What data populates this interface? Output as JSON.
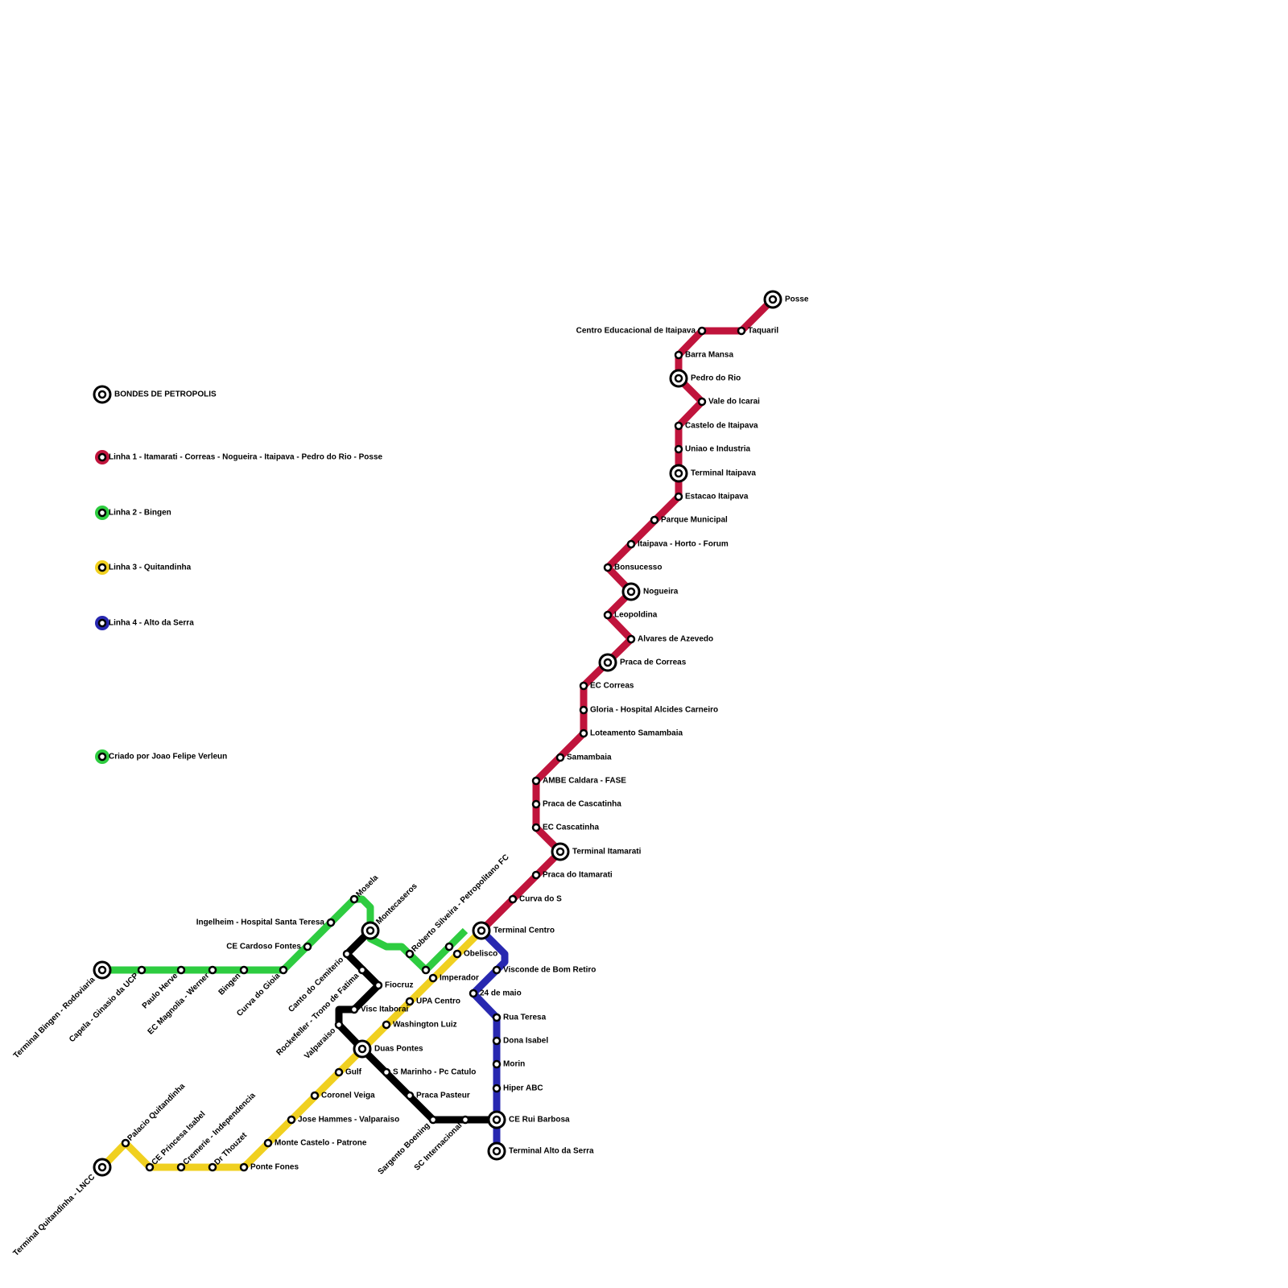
{
  "legend": {
    "title": "BONDES DE PETROPOLIS",
    "lines": [
      {
        "name": "Linha 1 - Itamarati - Correas - Nogueira - Itaipava - Pedro do Rio - Posse",
        "color": "#c0143c"
      },
      {
        "name": "Linha 2 - Bingen",
        "color": "#2ecc40"
      },
      {
        "name": "Linha 3 - Quitandinha",
        "color": "#f0d020"
      },
      {
        "name": "Linha 4 - Alto da Serra",
        "color": "#2828b0"
      }
    ],
    "credit": "Criado por Joao Felipe Verleun"
  },
  "stations": [
    "Terminal Centro",
    "Curva do S",
    "Praca do Itamarati",
    "Terminal Itamarati",
    "EC Cascatinha",
    "Praca de Cascatinha",
    "AMBE Caldara - FASE",
    "Samambaia",
    "Loteamento Samambaia",
    "Gloria - Hospital Alcides Carneiro",
    "EC Correas",
    "Praca de Correas",
    "Alvares de Azevedo",
    "Leopoldina",
    "Nogueira",
    "Bonsucesso",
    "Itaipava - Horto - Forum",
    "Parque Municipal",
    "Estacao Itaipava",
    "Terminal Itaipava",
    "Uniao e Industria",
    "Castelo de Itaipava",
    "Vale do Icarai",
    "Pedro do Rio",
    "Barra Mansa",
    "Centro Educacional de Itaipava",
    "Taquaril",
    "Posse",
    "Terminal Bingen - Rodoviaria",
    "Capela - Ginasio da UCP",
    "Paulo Herve",
    "EC Magnolia - Werner",
    "Bingen",
    "Curva do Gioia",
    "CE Cardoso Fontes",
    "Ingelheim - Hospital Santa Teresa",
    "Mosela",
    "Montecaseros",
    "Roberto Silveira - Petropolitano FC",
    "Terminal Quitandinha - LNCC",
    "Palacio Quitandinha",
    "CE Princesa Isabel",
    "Cremerie - Independencia",
    "Dr Thouzet",
    "Ponte Fones",
    "Monte Castelo - Patrone",
    "Jose Hammes - Valparaiso",
    "Coronel Veiga",
    "Gulf",
    "Duas Pontes",
    "Washington Luiz",
    "UPA Centro",
    "Imperador",
    "Obelisco",
    "Canto do Cemiterio",
    "Rockefeller - Trono de Fatima",
    "Fiocruz",
    "Visc Itaborai",
    "Valparaiso",
    "S Marinho - Pc Catulo",
    "Praca Pasteur",
    "Sargento Boening",
    "SC Internacional",
    "CE Rui Barbosa",
    "Visconde de Bom Retiro",
    "24 de maio",
    "Rua Teresa",
    "Dona Isabel",
    "Morin",
    "Hiper ABC",
    "Terminal Alto da Serra"
  ]
}
